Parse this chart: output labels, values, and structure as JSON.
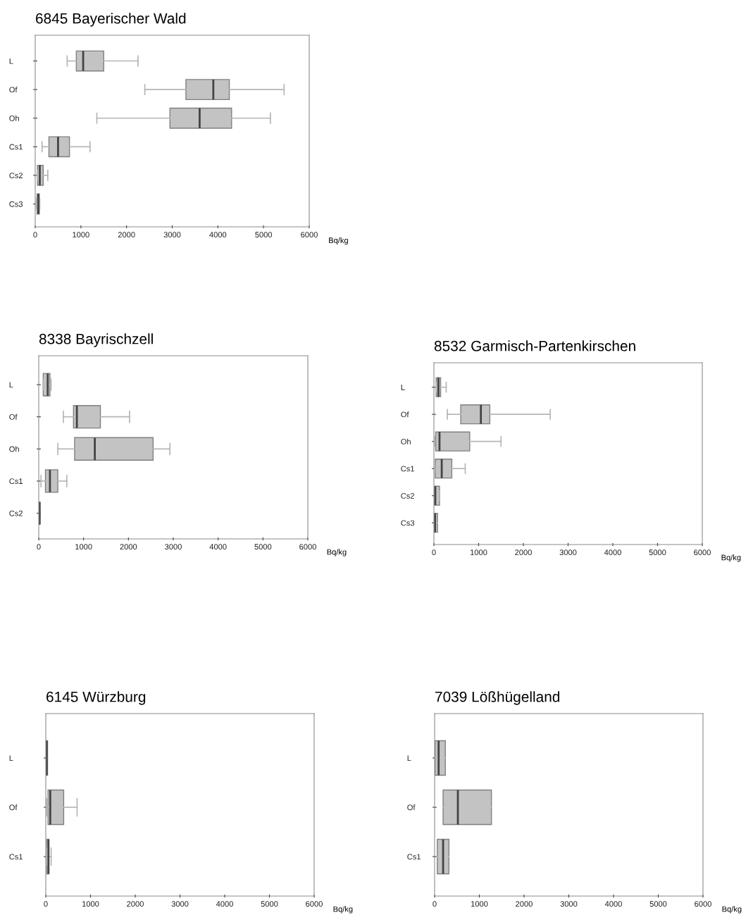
{
  "chart_data": [
    {
      "type": "box",
      "orientation": "horizontal",
      "title": "6845 Bayerischer Wald",
      "xlabel": "Bq/kg",
      "categories": [
        "L",
        "Of",
        "Oh",
        "Cs1",
        "Cs2",
        "Cs3"
      ],
      "xlim": [
        0,
        6000
      ],
      "xticks": [
        0,
        1000,
        2000,
        3000,
        4000,
        5000,
        6000
      ],
      "boxes": [
        {
          "low": 700,
          "q1": 900,
          "median": 1050,
          "q3": 1500,
          "high": 2250
        },
        {
          "low": 2400,
          "q1": 3300,
          "median": 3900,
          "q3": 4250,
          "high": 5450
        },
        {
          "low": 1350,
          "q1": 2950,
          "median": 3600,
          "q3": 4300,
          "high": 5150
        },
        {
          "low": 150,
          "q1": 300,
          "median": 500,
          "q3": 750,
          "high": 1200
        },
        {
          "low": 50,
          "q1": 50,
          "median": 100,
          "q3": 175,
          "high": 275
        },
        {
          "low": 25,
          "q1": 40,
          "median": 70,
          "q3": 90,
          "high": 100
        }
      ]
    },
    {
      "type": "box",
      "orientation": "horizontal",
      "title": "8338 Bayrischzell",
      "xlabel": "Bq/kg",
      "categories": [
        "L",
        "Of",
        "Oh",
        "Cs1",
        "Cs2"
      ],
      "xlim": [
        0,
        6000
      ],
      "xticks": [
        0,
        1000,
        2000,
        3000,
        4000,
        5000,
        6000
      ],
      "boxes": [
        {
          "low": 100,
          "q1": 100,
          "median": 200,
          "q3": 250,
          "high": 275
        },
        {
          "low": 550,
          "q1": 775,
          "median": 850,
          "q3": 1375,
          "high": 2025
        },
        {
          "low": 425,
          "q1": 800,
          "median": 1250,
          "q3": 2550,
          "high": 2925
        },
        {
          "low": 50,
          "q1": 150,
          "median": 250,
          "q3": 425,
          "high": 625
        },
        {
          "low": 15,
          "q1": 18,
          "median": 20,
          "q3": 22,
          "high": 25
        }
      ]
    },
    {
      "type": "box",
      "orientation": "horizontal",
      "title": "8532 Garmisch-Partenkirschen",
      "xlabel": "Bq/kg",
      "categories": [
        "L",
        "Of",
        "Oh",
        "Cs1",
        "Cs2",
        "Cs3"
      ],
      "xlim": [
        0,
        6000
      ],
      "xticks": [
        0,
        1000,
        2000,
        3000,
        4000,
        5000,
        6000
      ],
      "boxes": [
        {
          "low": 50,
          "q1": 50,
          "median": 100,
          "q3": 150,
          "high": 275
        },
        {
          "low": 300,
          "q1": 600,
          "median": 1050,
          "q3": 1250,
          "high": 2600
        },
        {
          "low": 20,
          "q1": 40,
          "median": 125,
          "q3": 800,
          "high": 1500
        },
        {
          "low": 20,
          "q1": 30,
          "median": 175,
          "q3": 400,
          "high": 700
        },
        {
          "low": 10,
          "q1": 15,
          "median": 30,
          "q3": 125,
          "high": 125
        },
        {
          "low": 10,
          "q1": 10,
          "median": 25,
          "q3": 80,
          "high": 80
        }
      ]
    },
    {
      "type": "box",
      "orientation": "horizontal",
      "title": "6145 Würzburg",
      "xlabel": "Bq/kg",
      "categories": [
        "L",
        "Of",
        "Cs1"
      ],
      "xlim": [
        0,
        6000
      ],
      "xticks": [
        0,
        1000,
        2000,
        3000,
        4000,
        5000,
        6000
      ],
      "boxes": [
        {
          "low": 0,
          "q1": 0,
          "median": 20,
          "q3": 40,
          "high": 40
        },
        {
          "low": 20,
          "q1": 50,
          "median": 100,
          "q3": 400,
          "high": 700
        },
        {
          "low": 20,
          "q1": 20,
          "median": 60,
          "q3": 70,
          "high": 120
        }
      ]
    },
    {
      "type": "box",
      "orientation": "horizontal",
      "title": "7039 Lößhügelland",
      "xlabel": "Bq/kg",
      "categories": [
        "L",
        "Of",
        "Cs1"
      ],
      "xlim": [
        0,
        6000
      ],
      "xticks": [
        0,
        1000,
        2000,
        3000,
        4000,
        5000,
        6000
      ],
      "boxes": [
        {
          "low": 10,
          "q1": 10,
          "median": 90,
          "q3": 240,
          "high": 240
        },
        {
          "low": 190,
          "q1": 190,
          "median": 520,
          "q3": 1270,
          "high": 1270
        },
        {
          "low": 60,
          "q1": 60,
          "median": 190,
          "q3": 320,
          "high": 320
        }
      ]
    }
  ]
}
